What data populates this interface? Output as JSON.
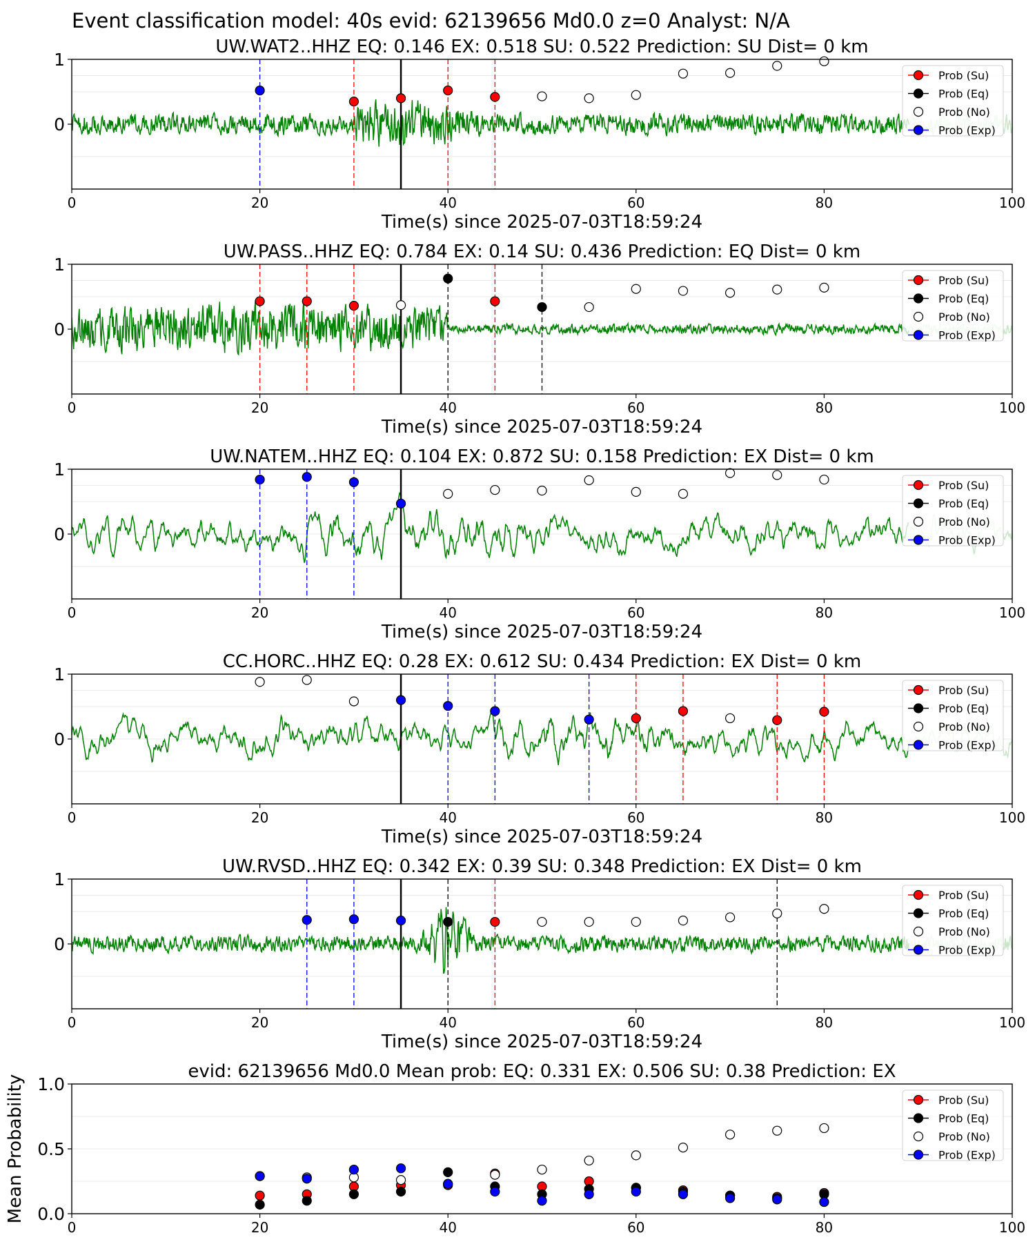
{
  "figure_title": "Event classification model: 40s evid: 62139656 Md0.0 z=0 Analyst: N/A",
  "legend": {
    "su": "Prob (Su)",
    "eq": "Prob (Eq)",
    "no": "Prob (No)",
    "exp": "Prob (Exp)"
  },
  "colors": {
    "su": "#ff0000",
    "eq": "#000000",
    "no": "#ffffff",
    "exp": "#0000ff",
    "trace": "#008000",
    "trace_faded": "#c8e6c8"
  },
  "chart_data": [
    {
      "type": "line",
      "title": "UW.WAT2..HHZ   EQ: 0.146  EX: 0.518  SU: 0.522   Prediction: SU    Dist= 0 km",
      "xlabel": "Time(s) since 2025-07-03T18:59:24",
      "ylabel": "",
      "xlim": [
        0,
        100
      ],
      "ylim": [
        -1,
        1
      ],
      "xticks": [
        "0",
        "20",
        "40",
        "60",
        "80",
        "100"
      ],
      "yticks": [
        "0",
        "1"
      ],
      "legend_position": "top-right",
      "origin_line": 35,
      "waveform_amplitude": 0.13,
      "burst": {
        "start": 30,
        "end": 45,
        "peak": 35,
        "gain": 2.6
      },
      "decision_lines": [
        {
          "x": 20,
          "class": "exp"
        },
        {
          "x": 30,
          "class": "su"
        },
        {
          "x": 40,
          "class": "su"
        },
        {
          "x": 45,
          "class": "su"
        }
      ],
      "points": [
        {
          "x": 20,
          "y": 0.52,
          "class": "exp"
        },
        {
          "x": 30,
          "y": 0.35,
          "class": "su"
        },
        {
          "x": 35,
          "y": 0.4,
          "class": "su"
        },
        {
          "x": 40,
          "y": 0.52,
          "class": "su"
        },
        {
          "x": 45,
          "y": 0.42,
          "class": "su"
        },
        {
          "x": 50,
          "y": 0.43,
          "class": "no"
        },
        {
          "x": 55,
          "y": 0.4,
          "class": "no"
        },
        {
          "x": 60,
          "y": 0.45,
          "class": "no"
        },
        {
          "x": 65,
          "y": 0.78,
          "class": "no"
        },
        {
          "x": 70,
          "y": 0.79,
          "class": "no"
        },
        {
          "x": 75,
          "y": 0.9,
          "class": "no"
        },
        {
          "x": 80,
          "y": 0.97,
          "class": "no"
        }
      ]
    },
    {
      "type": "line",
      "title": "UW.PASS..HHZ   EQ: 0.784  EX: 0.14  SU: 0.436   Prediction: EQ    Dist= 0 km",
      "xlabel": "Time(s) since 2025-07-03T18:59:24",
      "ylabel": "",
      "xlim": [
        0,
        100
      ],
      "ylim": [
        -1,
        1
      ],
      "xticks": [
        "0",
        "20",
        "40",
        "60",
        "80",
        "100"
      ],
      "yticks": [
        "0",
        "1"
      ],
      "legend_position": "top-right",
      "origin_line": 35,
      "waveform_amplitude": 0.25,
      "burst": {
        "start": 0,
        "end": 40,
        "peak": 20,
        "gain": 1.3,
        "after": 0.25
      },
      "decision_lines": [
        {
          "x": 20,
          "class": "su"
        },
        {
          "x": 25,
          "class": "su"
        },
        {
          "x": 30,
          "class": "su"
        },
        {
          "x": 40,
          "class": "eq"
        },
        {
          "x": 45,
          "class": "su"
        },
        {
          "x": 50,
          "class": "eq"
        }
      ],
      "points": [
        {
          "x": 20,
          "y": 0.43,
          "class": "su"
        },
        {
          "x": 25,
          "y": 0.43,
          "class": "su"
        },
        {
          "x": 30,
          "y": 0.36,
          "class": "su"
        },
        {
          "x": 35,
          "y": 0.37,
          "class": "no"
        },
        {
          "x": 40,
          "y": 0.78,
          "class": "eq"
        },
        {
          "x": 45,
          "y": 0.43,
          "class": "su"
        },
        {
          "x": 50,
          "y": 0.34,
          "class": "eq"
        },
        {
          "x": 55,
          "y": 0.34,
          "class": "no"
        },
        {
          "x": 60,
          "y": 0.62,
          "class": "no"
        },
        {
          "x": 65,
          "y": 0.59,
          "class": "no"
        },
        {
          "x": 70,
          "y": 0.56,
          "class": "no"
        },
        {
          "x": 75,
          "y": 0.61,
          "class": "no"
        },
        {
          "x": 80,
          "y": 0.64,
          "class": "no"
        }
      ]
    },
    {
      "type": "line",
      "title": "UW.NATEM..HHZ   EQ: 0.104  EX: 0.872  SU: 0.158   Prediction: EX    Dist= 0 km",
      "xlabel": "Time(s) since 2025-07-03T18:59:24",
      "ylabel": "",
      "xlim": [
        0,
        100
      ],
      "ylim": [
        -1,
        1
      ],
      "xticks": [
        "0",
        "20",
        "40",
        "60",
        "80",
        "100"
      ],
      "yticks": [
        "0",
        "1"
      ],
      "legend_position": "top-right",
      "origin_line": 35,
      "waveform_amplitude": 0.33,
      "burst": {
        "start": 20,
        "end": 50,
        "peak": 36,
        "gain": 1.4
      },
      "decision_lines": [
        {
          "x": 20,
          "class": "exp"
        },
        {
          "x": 25,
          "class": "exp"
        },
        {
          "x": 30,
          "class": "exp"
        }
      ],
      "points": [
        {
          "x": 20,
          "y": 0.84,
          "class": "exp"
        },
        {
          "x": 25,
          "y": 0.88,
          "class": "exp"
        },
        {
          "x": 30,
          "y": 0.8,
          "class": "exp"
        },
        {
          "x": 35,
          "y": 0.47,
          "class": "exp"
        },
        {
          "x": 40,
          "y": 0.62,
          "class": "no"
        },
        {
          "x": 45,
          "y": 0.68,
          "class": "no"
        },
        {
          "x": 50,
          "y": 0.67,
          "class": "no"
        },
        {
          "x": 55,
          "y": 0.83,
          "class": "no"
        },
        {
          "x": 60,
          "y": 0.65,
          "class": "no"
        },
        {
          "x": 65,
          "y": 0.62,
          "class": "no"
        },
        {
          "x": 70,
          "y": 0.94,
          "class": "no"
        },
        {
          "x": 75,
          "y": 0.91,
          "class": "no"
        },
        {
          "x": 80,
          "y": 0.84,
          "class": "no"
        }
      ]
    },
    {
      "type": "line",
      "title": "CC.HORC..HHZ   EQ: 0.28  EX: 0.612  SU: 0.434   Prediction: EX    Dist= 0 km",
      "xlabel": "Time(s) since 2025-07-03T18:59:24",
      "ylabel": "",
      "xlim": [
        0,
        100
      ],
      "ylim": [
        -1,
        1
      ],
      "xticks": [
        "0",
        "20",
        "40",
        "60",
        "80",
        "100"
      ],
      "yticks": [
        "0",
        "1"
      ],
      "legend_position": "top-right",
      "origin_line": 35,
      "waveform_amplitude": 0.3,
      "burst": {
        "start": 45,
        "end": 70,
        "peak": 55,
        "gain": 1.6
      },
      "decision_lines": [
        {
          "x": 40,
          "class": "exp"
        },
        {
          "x": 45,
          "class": "exp"
        },
        {
          "x": 55,
          "class": "exp"
        },
        {
          "x": 60,
          "class": "su"
        },
        {
          "x": 65,
          "class": "su"
        },
        {
          "x": 75,
          "class": "su"
        },
        {
          "x": 80,
          "class": "su"
        }
      ],
      "points": [
        {
          "x": 20,
          "y": 0.88,
          "class": "no"
        },
        {
          "x": 25,
          "y": 0.91,
          "class": "no"
        },
        {
          "x": 30,
          "y": 0.58,
          "class": "no"
        },
        {
          "x": 35,
          "y": 0.6,
          "class": "exp"
        },
        {
          "x": 40,
          "y": 0.51,
          "class": "exp"
        },
        {
          "x": 45,
          "y": 0.43,
          "class": "exp"
        },
        {
          "x": 55,
          "y": 0.3,
          "class": "exp"
        },
        {
          "x": 60,
          "y": 0.32,
          "class": "su"
        },
        {
          "x": 65,
          "y": 0.43,
          "class": "su"
        },
        {
          "x": 70,
          "y": 0.32,
          "class": "no"
        },
        {
          "x": 75,
          "y": 0.29,
          "class": "su"
        },
        {
          "x": 80,
          "y": 0.42,
          "class": "su"
        }
      ]
    },
    {
      "type": "line",
      "title": "UW.RVSD..HHZ   EQ: 0.342  EX: 0.39  SU: 0.348   Prediction: EX    Dist= 0 km",
      "xlabel": "Time(s) since 2025-07-03T18:59:24",
      "ylabel": "",
      "xlim": [
        0,
        100
      ],
      "ylim": [
        -1,
        1
      ],
      "xticks": [
        "0",
        "20",
        "40",
        "60",
        "80",
        "100"
      ],
      "yticks": [
        "0",
        "1"
      ],
      "legend_position": "top-right",
      "origin_line": 35,
      "waveform_amplitude": 0.1,
      "burst": {
        "start": 37,
        "end": 43,
        "peak": 40,
        "gain": 5.5
      },
      "decision_lines": [
        {
          "x": 25,
          "class": "exp"
        },
        {
          "x": 30,
          "class": "exp"
        },
        {
          "x": 40,
          "class": "eq"
        },
        {
          "x": 45,
          "class": "su"
        },
        {
          "x": 75,
          "class": "eq"
        }
      ],
      "points": [
        {
          "x": 25,
          "y": 0.37,
          "class": "exp"
        },
        {
          "x": 30,
          "y": 0.38,
          "class": "exp"
        },
        {
          "x": 35,
          "y": 0.36,
          "class": "exp"
        },
        {
          "x": 40,
          "y": 0.34,
          "class": "eq"
        },
        {
          "x": 45,
          "y": 0.34,
          "class": "su"
        },
        {
          "x": 50,
          "y": 0.34,
          "class": "no"
        },
        {
          "x": 55,
          "y": 0.34,
          "class": "no"
        },
        {
          "x": 60,
          "y": 0.34,
          "class": "no"
        },
        {
          "x": 65,
          "y": 0.36,
          "class": "no"
        },
        {
          "x": 70,
          "y": 0.41,
          "class": "no"
        },
        {
          "x": 75,
          "y": 0.47,
          "class": "no"
        },
        {
          "x": 80,
          "y": 0.54,
          "class": "no"
        }
      ]
    },
    {
      "type": "scatter",
      "title": "evid: 62139656  Md0.0   Mean prob:   EQ: 0.331  EX: 0.506  SU: 0.38   Prediction: EX",
      "xlabel": "",
      "ylabel": "Mean Probability",
      "xlim": [
        0,
        100
      ],
      "ylim": [
        0,
        1
      ],
      "xticks": [
        "0",
        "20",
        "40",
        "60",
        "80",
        "100"
      ],
      "yticks": [
        "0.0",
        "0.5",
        "1.0"
      ],
      "legend_position": "top-right",
      "x": [
        20,
        25,
        30,
        35,
        40,
        45,
        50,
        55,
        60,
        65,
        70,
        75,
        80
      ],
      "series": [
        {
          "name": "Prob (Su)",
          "class": "su",
          "values": [
            0.14,
            0.15,
            0.21,
            0.22,
            0.22,
            0.31,
            0.21,
            0.25,
            0.2,
            0.18,
            0.14,
            0.13,
            0.16
          ]
        },
        {
          "name": "Prob (Eq)",
          "class": "eq",
          "values": [
            0.07,
            0.1,
            0.15,
            0.17,
            0.32,
            0.21,
            0.15,
            0.19,
            0.2,
            0.17,
            0.14,
            0.12,
            0.15
          ]
        },
        {
          "name": "Prob (No)",
          "class": "no",
          "values": [
            0.29,
            0.28,
            0.28,
            0.26,
            0.23,
            0.3,
            0.34,
            0.41,
            0.45,
            0.51,
            0.61,
            0.64,
            0.66
          ]
        },
        {
          "name": "Prob (Exp)",
          "class": "exp",
          "values": [
            0.29,
            0.27,
            0.34,
            0.35,
            0.23,
            0.17,
            0.1,
            0.15,
            0.17,
            0.15,
            0.12,
            0.11,
            0.09
          ]
        }
      ]
    }
  ]
}
